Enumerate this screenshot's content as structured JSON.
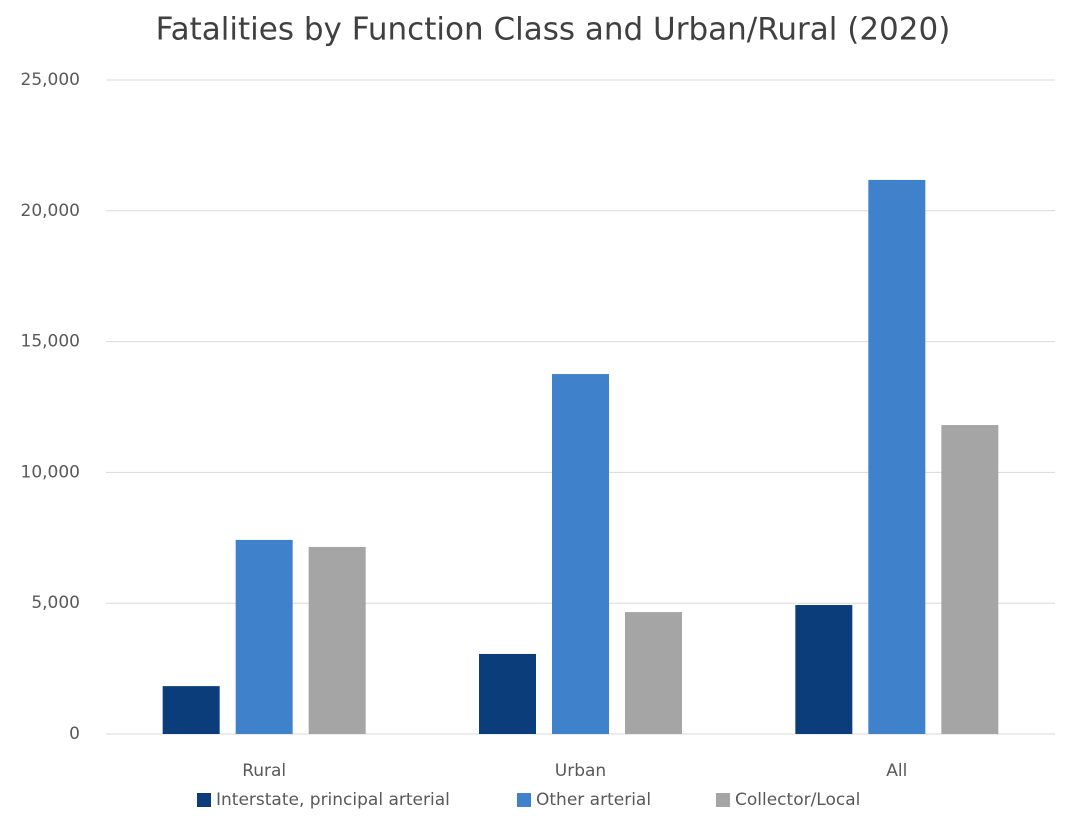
{
  "chart_data": {
    "type": "bar",
    "title": "Fatalities by Function Class and Urban/Rural (2020)",
    "categories": [
      "Rural",
      "Urban",
      "All"
    ],
    "series": [
      {
        "name": "Interstate, principal arterial",
        "color": "#0b3d7a",
        "values": [
          1830,
          3060,
          4930
        ]
      },
      {
        "name": "Other arterial",
        "color": "#3f81cb",
        "values": [
          7420,
          13760,
          21180
        ]
      },
      {
        "name": "Collector/Local",
        "color": "#a5a5a5",
        "values": [
          7150,
          4660,
          11810
        ]
      }
    ],
    "ylim": [
      0,
      25000
    ],
    "yticks": [
      0,
      {
        "value": 5000,
        "label": "5,000"
      },
      {
        "value": 10000,
        "label": "10,000"
      },
      {
        "value": 15000,
        "label": "15,000"
      },
      {
        "value": 20000,
        "label": "20,000"
      },
      {
        "value": 25000,
        "label": "25,000"
      }
    ],
    "grid": true,
    "legend": "bottom"
  }
}
